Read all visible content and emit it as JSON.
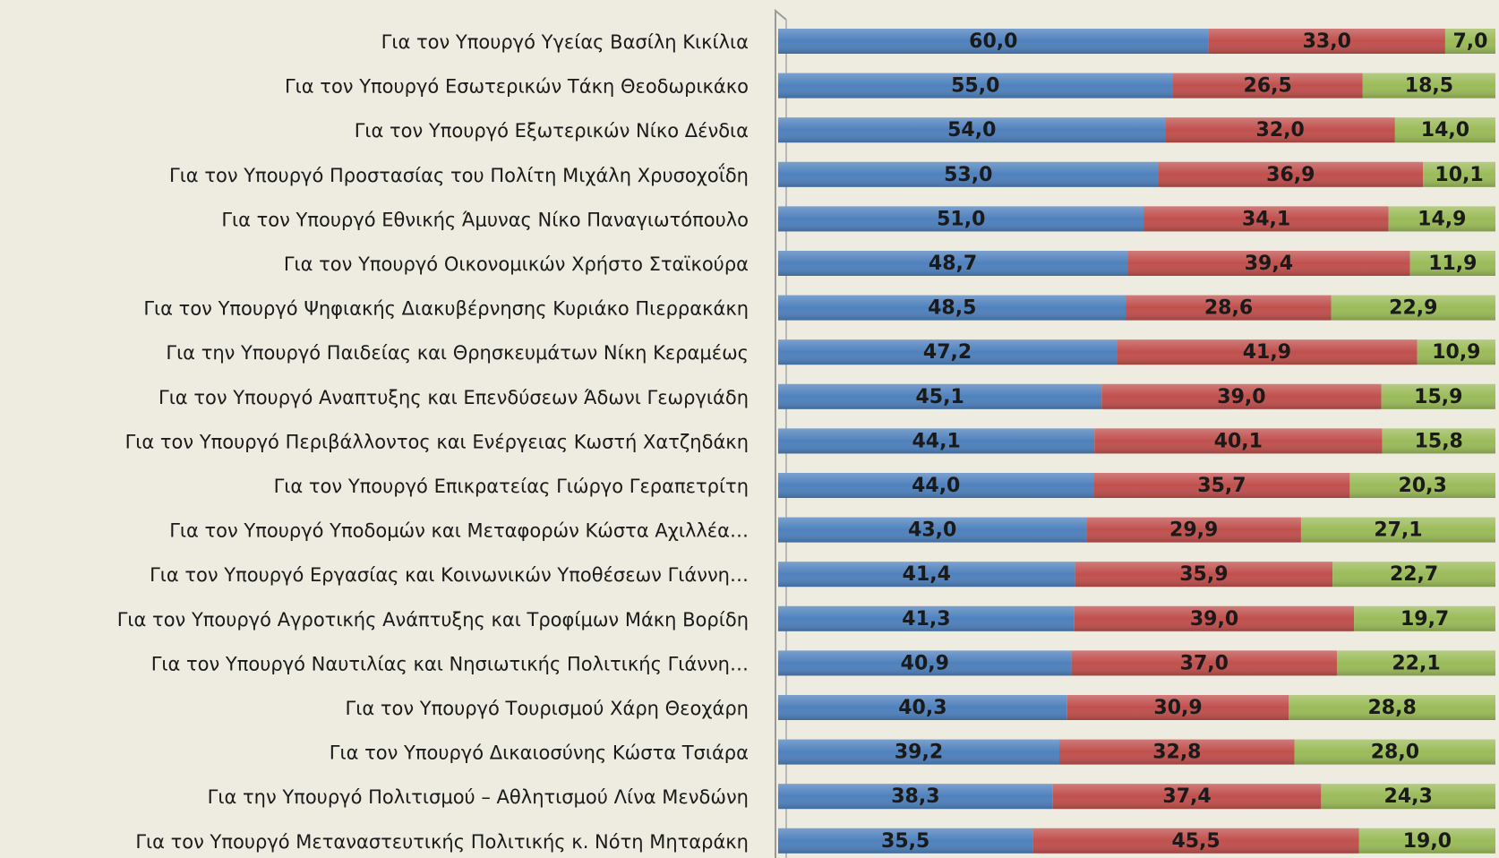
{
  "chart_data": {
    "type": "stacked-bar-horizontal",
    "categories": [
      "Για τον Υπουργό Υγείας Βασίλη Κικίλια",
      "Για τον Υπουργό Εσωτερικών Τάκη Θεοδωρικάκο",
      "Για τον Υπουργό Εξωτερικών Νίκο Δένδια",
      "Για τον Υπουργό Προστασίας του Πολίτη Μιχάλη Χρυσοχοΐδη",
      "Για τον Υπουργό Εθνικής Άμυνας Νίκο Παναγιωτόπουλο",
      "Για τον Υπουργό Οικονομικών Χρήστο Σταϊκούρα",
      "Για τον Υπουργό Ψηφιακής Διακυβέρνησης Κυριάκο Πιερρακάκη",
      "Για την Υπουργό Παιδείας και Θρησκευμάτων Νίκη Κεραμέως",
      "Για τον Υπουργό Αναπτυξης και Επενδύσεων Άδωνι Γεωργιάδη",
      "Για τον Υπουργό Περιβάλλοντος και Ενέργειας Κωστή Χατζηδάκη",
      "Για τον Υπουργό Επικρατείας Γιώργο Γεραπετρίτη",
      "Για τον Υπουργό Υποδομών και Μεταφορών Κώστα Αχιλλέα…",
      "Για τον Υπουργό Εργασίας και Κοινωνικών Υποθέσεων Γιάννη…",
      "Για τον Υπουργό Αγροτικής Ανάπτυξης και Τροφίμων Μάκη Βορίδη",
      "Για τον Υπουργό Ναυτιλίας και Νησιωτικής Πολιτικής Γιάννη…",
      "Για τον Υπουργό Τουρισμού Χάρη Θεοχάρη",
      "Για τον Υπουργό Δικαιοσύνης Κώστα Τσιάρα",
      "Για την Υπουργό Πολιτισμού – Αθλητισμού Λίνα Μενδώνη",
      "Για τον Υπουργό Μεταναστευτικής Πολιτικής κ. Νότη Μηταράκη"
    ],
    "xlim": [
      0,
      100
    ],
    "series": [
      {
        "color": "#4f81bd",
        "values": [
          60.0,
          55.0,
          54.0,
          53.0,
          51.0,
          48.7,
          48.5,
          47.2,
          45.1,
          44.1,
          44.0,
          43.0,
          41.4,
          41.3,
          40.9,
          40.3,
          39.2,
          38.3,
          35.5
        ],
        "value_labels": [
          "60,0",
          "55,0",
          "54,0",
          "53,0",
          "51,0",
          "48,7",
          "48,5",
          "47,2",
          "45,1",
          "44,1",
          "44,0",
          "43,0",
          "41,4",
          "41,3",
          "40,9",
          "40,3",
          "39,2",
          "38,3",
          "35,5"
        ]
      },
      {
        "color": "#c0504d",
        "values": [
          33.0,
          26.5,
          32.0,
          36.9,
          34.1,
          39.4,
          28.6,
          41.9,
          39.0,
          40.1,
          35.7,
          29.9,
          35.9,
          39.0,
          37.0,
          30.9,
          32.8,
          37.4,
          45.5
        ],
        "value_labels": [
          "33,0",
          "26,5",
          "32,0",
          "36,9",
          "34,1",
          "39,4",
          "28,6",
          "41,9",
          "39,0",
          "40,1",
          "35,7",
          "29,9",
          "35,9",
          "39,0",
          "37,0",
          "30,9",
          "32,8",
          "37,4",
          "45,5"
        ]
      },
      {
        "color": "#9bbb59",
        "values": [
          7.0,
          18.5,
          14.0,
          10.1,
          14.9,
          11.9,
          22.9,
          10.9,
          15.9,
          15.8,
          20.3,
          27.1,
          22.7,
          19.7,
          22.1,
          28.8,
          28.0,
          24.3,
          19.0
        ],
        "value_labels": [
          "7,0",
          "18,5",
          "14,0",
          "10,1",
          "14,9",
          "11,9",
          "22,9",
          "10,9",
          "15,9",
          "15,8",
          "20,3",
          "27,1",
          "22,7",
          "19,7",
          "22,1",
          "28,8",
          "28,0",
          "24,3",
          "19,0"
        ]
      }
    ]
  }
}
